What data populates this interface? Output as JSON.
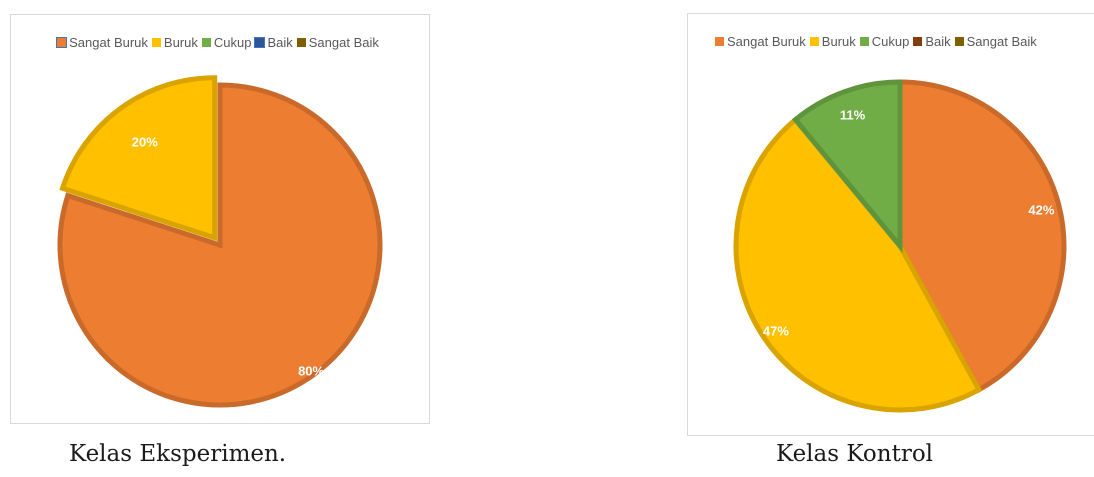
{
  "chart_data": [
    {
      "type": "pie",
      "legend": [
        "Sangat Buruk",
        "Buruk",
        "Cukup",
        "Baik",
        "Sangat Baik"
      ],
      "legend_position": "top",
      "slices": [
        {
          "label": "Sangat Buruk",
          "value": 80,
          "data_label": "80%",
          "color": "#ED7D31"
        },
        {
          "label": "Buruk",
          "value": 20,
          "data_label": "20%",
          "color": "#FFC000"
        }
      ],
      "start_angle_deg": 0,
      "caption": "Kelas Eksperimen."
    },
    {
      "type": "pie",
      "legend": [
        "Sangat Buruk",
        "Buruk",
        "Cukup",
        "Baik",
        "Sangat Baik"
      ],
      "legend_position": "top",
      "slices": [
        {
          "label": "Sangat Buruk",
          "value": 42,
          "data_label": "42%",
          "color": "#ED7D31"
        },
        {
          "label": "Buruk",
          "value": 47,
          "data_label": "47%",
          "color": "#FFC000"
        },
        {
          "label": "Cukup",
          "value": 11,
          "data_label": "11%",
          "color": "#70AD47"
        }
      ],
      "start_angle_deg": 0,
      "caption": "Kelas Kontrol"
    }
  ],
  "legend_colors": {
    "Sangat Buruk": "#ED7D31",
    "Buruk": "#FFC000",
    "Cukup": "#70AD47",
    "Baik": "#843C0C",
    "Sangat Baik": "#7F6000"
  }
}
